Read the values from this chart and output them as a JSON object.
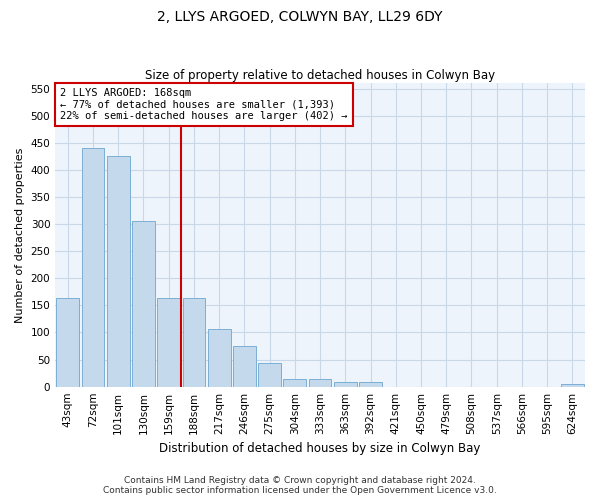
{
  "title": "2, LLYS ARGOED, COLWYN BAY, LL29 6DY",
  "subtitle": "Size of property relative to detached houses in Colwyn Bay",
  "xlabel": "Distribution of detached houses by size in Colwyn Bay",
  "ylabel": "Number of detached properties",
  "categories": [
    "43sqm",
    "72sqm",
    "101sqm",
    "130sqm",
    "159sqm",
    "188sqm",
    "217sqm",
    "246sqm",
    "275sqm",
    "304sqm",
    "333sqm",
    "363sqm",
    "392sqm",
    "421sqm",
    "450sqm",
    "479sqm",
    "508sqm",
    "537sqm",
    "566sqm",
    "595sqm",
    "624sqm"
  ],
  "values": [
    163,
    440,
    425,
    305,
    163,
    163,
    107,
    75,
    44,
    15,
    15,
    8,
    8,
    0,
    0,
    0,
    0,
    0,
    0,
    0,
    5
  ],
  "bar_color": "#c5d9ed",
  "bar_edge_color": "#7bafd4",
  "grid_color": "#c8d8e8",
  "bg_color": "#eef4fb",
  "red_line_x": 4.5,
  "red_line_color": "#cc0000",
  "annotation_text": "2 LLYS ARGOED: 168sqm\n← 77% of detached houses are smaller (1,393)\n22% of semi-detached houses are larger (402) →",
  "annotation_box_color": "#ffffff",
  "annotation_border_color": "#cc0000",
  "footer_line1": "Contains HM Land Registry data © Crown copyright and database right 2024.",
  "footer_line2": "Contains public sector information licensed under the Open Government Licence v3.0.",
  "ylim": [
    0,
    560
  ],
  "yticks": [
    0,
    50,
    100,
    150,
    200,
    250,
    300,
    350,
    400,
    450,
    500,
    550
  ],
  "title_fontsize": 10,
  "subtitle_fontsize": 8.5,
  "xlabel_fontsize": 8.5,
  "ylabel_fontsize": 8,
  "tick_fontsize": 7.5,
  "annotation_fontsize": 7.5,
  "footer_fontsize": 6.5
}
